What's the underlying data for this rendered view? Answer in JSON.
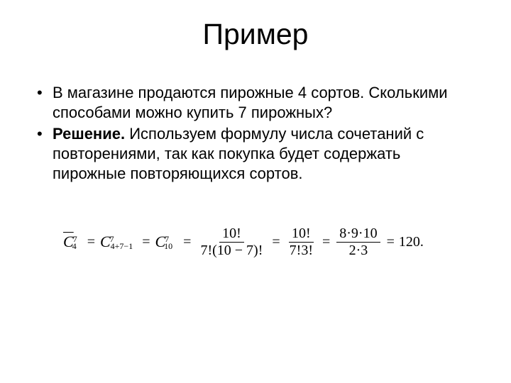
{
  "slide": {
    "title": "Пример",
    "bullets": [
      {
        "text": "В магазине продаются пирожные 4 сортов. Сколькими способами можно купить 7 пирожных?",
        "bold_prefix": ""
      },
      {
        "text": "Используем формулу  числа сочетаний с повторениями, так как покупка будет содержать пирожные  повторяющихся сортов.",
        "bold_prefix": "Решение. "
      }
    ],
    "formula": {
      "font_family": "Times New Roman",
      "font_size_pt": 20,
      "color": "#000000",
      "terms": [
        {
          "type": "C_bar",
          "sub": "4",
          "sup": "7"
        },
        {
          "type": "eq",
          "text": "="
        },
        {
          "type": "C",
          "sub": "4+7−1",
          "sup": "7"
        },
        {
          "type": "eq",
          "text": "="
        },
        {
          "type": "C",
          "sub": "10",
          "sup": "7"
        },
        {
          "type": "eq",
          "text": "="
        },
        {
          "type": "frac",
          "num": "10!",
          "den": "7!(10 − 7)!"
        },
        {
          "type": "eq",
          "text": "="
        },
        {
          "type": "frac",
          "num": "10!",
          "den": "7!3!"
        },
        {
          "type": "eq",
          "text": "="
        },
        {
          "type": "frac",
          "num": "8·9·10",
          "den": "2·3"
        },
        {
          "type": "eq",
          "text": "="
        },
        {
          "type": "result",
          "text": "120."
        }
      ]
    },
    "style": {
      "background_color": "#ffffff",
      "title_fontsize": 41,
      "body_fontsize": 22,
      "text_color": "#000000"
    }
  }
}
